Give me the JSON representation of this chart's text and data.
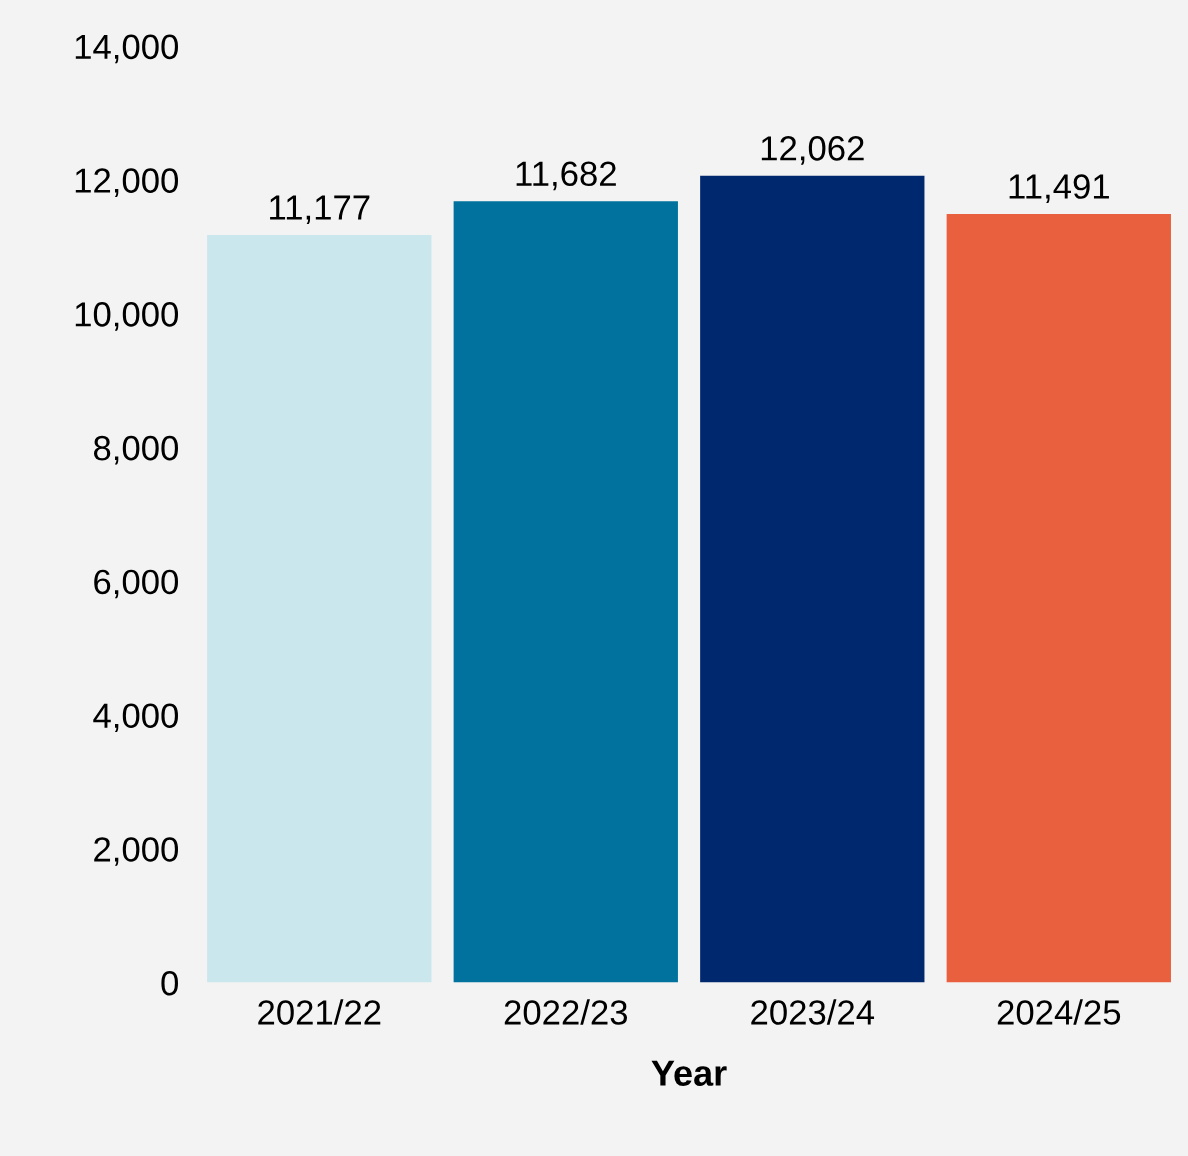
{
  "chart_data": {
    "type": "bar",
    "xlabel": "Year",
    "categories": [
      "2021/22",
      "2022/23",
      "2023/24",
      "2024/25"
    ],
    "values": [
      11177,
      11682,
      12062,
      11491
    ],
    "colors": [
      "#c9e7ec",
      "#00729d",
      "#00286e",
      "#e8603e"
    ],
    "ylim": [
      0,
      14000
    ],
    "yticks": [
      {
        "value": 0,
        "label": "0"
      },
      {
        "value": 2000,
        "label": "2,000"
      },
      {
        "value": 4000,
        "label": "4,000"
      },
      {
        "value": 6000,
        "label": "6,000"
      },
      {
        "value": 8000,
        "label": "8,000"
      },
      {
        "value": 10000,
        "label": "10,000"
      },
      {
        "value": 12000,
        "label": "12,000"
      },
      {
        "value": 14000,
        "label": "14,000"
      }
    ],
    "value_labels": [
      "11,177",
      "11,682",
      "12,062",
      "11,491"
    ],
    "grid": false,
    "legend": false
  }
}
